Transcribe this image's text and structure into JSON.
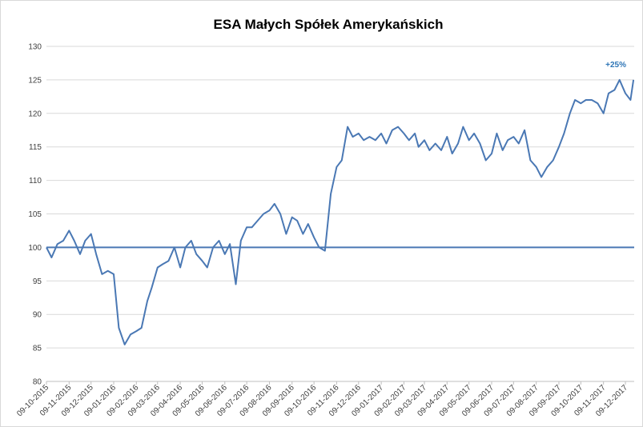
{
  "chart_data": {
    "type": "line",
    "title": "ESA Małych Spółek Amerykańskich",
    "annotation": "+25%",
    "color": "#4a78b4",
    "hline": 100,
    "grid": true,
    "ylim": [
      80,
      130
    ],
    "yticks": [
      80,
      85,
      90,
      95,
      100,
      105,
      110,
      115,
      120,
      125,
      130
    ],
    "xlim": [
      "09-10-2015",
      "21-12-2017"
    ],
    "xticks": [
      "09-10-2015",
      "09-11-2015",
      "09-12-2015",
      "09-01-2016",
      "09-02-2016",
      "09-03-2016",
      "09-04-2016",
      "09-05-2016",
      "09-06-2016",
      "09-07-2016",
      "09-08-2016",
      "09-09-2016",
      "09-10-2016",
      "09-11-2016",
      "09-12-2016",
      "09-01-2017",
      "09-02-2017",
      "09-03-2017",
      "09-04-2017",
      "09-05-2017",
      "09-06-2017",
      "09-07-2017",
      "09-08-2017",
      "09-09-2017",
      "09-10-2017",
      "09-11-2017",
      "09-12-2017"
    ],
    "x": [
      "09-10-2015",
      "16-10-2015",
      "24-10-2015",
      "01-11-2015",
      "09-11-2015",
      "16-11-2015",
      "24-11-2015",
      "01-12-2015",
      "09-12-2015",
      "16-12-2015",
      "24-12-2015",
      "01-01-2016",
      "09-01-2016",
      "16-01-2016",
      "24-01-2016",
      "01-02-2016",
      "09-02-2016",
      "16-02-2016",
      "24-02-2016",
      "01-03-2016",
      "09-03-2016",
      "16-03-2016",
      "24-03-2016",
      "01-04-2016",
      "09-04-2016",
      "16-04-2016",
      "24-04-2016",
      "01-05-2016",
      "09-05-2016",
      "16-05-2016",
      "24-05-2016",
      "01-06-2016",
      "09-06-2016",
      "16-06-2016",
      "24-06-2016",
      "01-07-2016",
      "09-07-2016",
      "16-07-2016",
      "24-07-2016",
      "01-08-2016",
      "09-08-2016",
      "16-08-2016",
      "24-08-2016",
      "01-09-2016",
      "09-09-2016",
      "16-09-2016",
      "24-09-2016",
      "01-10-2016",
      "09-10-2016",
      "16-10-2016",
      "24-10-2016",
      "01-11-2016",
      "09-11-2016",
      "16-11-2016",
      "24-11-2016",
      "01-12-2016",
      "09-12-2016",
      "16-12-2016",
      "24-12-2016",
      "01-01-2017",
      "09-01-2017",
      "16-01-2017",
      "24-01-2017",
      "01-02-2017",
      "09-02-2017",
      "16-02-2017",
      "24-02-2017",
      "01-03-2017",
      "09-03-2017",
      "16-03-2017",
      "24-03-2017",
      "01-04-2017",
      "09-04-2017",
      "16-04-2017",
      "24-04-2017",
      "01-05-2017",
      "09-05-2017",
      "16-05-2017",
      "24-05-2017",
      "01-06-2017",
      "09-06-2017",
      "16-06-2017",
      "24-06-2017",
      "01-07-2017",
      "09-07-2017",
      "16-07-2017",
      "24-07-2017",
      "01-08-2017",
      "09-08-2017",
      "16-08-2017",
      "24-08-2017",
      "01-09-2017",
      "09-09-2017",
      "16-09-2017",
      "24-09-2017",
      "01-10-2017",
      "09-10-2017",
      "16-10-2017",
      "24-10-2017",
      "01-11-2017",
      "09-11-2017",
      "16-11-2017",
      "24-11-2017",
      "01-12-2017",
      "09-12-2017",
      "16-12-2017",
      "20-12-2017"
    ],
    "values": [
      100,
      98.5,
      100.5,
      101,
      102.5,
      101,
      99,
      101,
      102,
      99,
      96,
      96.5,
      96,
      88,
      85.5,
      87,
      87.5,
      88,
      92,
      94,
      97,
      97.5,
      98,
      100,
      97,
      100,
      101,
      99,
      98,
      97,
      100,
      101,
      99,
      100.5,
      94.5,
      101,
      103,
      103,
      104,
      105,
      105.5,
      106.5,
      105,
      102,
      104.5,
      104,
      102,
      103.5,
      101.5,
      100,
      99.5,
      108,
      112,
      113,
      118,
      116.5,
      117,
      116,
      116.5,
      116,
      117,
      115.5,
      117.5,
      118,
      117,
      116,
      117,
      115,
      116,
      114.5,
      115.5,
      114.5,
      116.5,
      114,
      115.5,
      118,
      116,
      117,
      115.5,
      113,
      114,
      117,
      114.5,
      116,
      116.5,
      115.5,
      117.5,
      113,
      112,
      110.5,
      112,
      113,
      115,
      117,
      120,
      122,
      121.5,
      122,
      122,
      121.5,
      120,
      123,
      123.5,
      125,
      123,
      122,
      125
    ]
  }
}
